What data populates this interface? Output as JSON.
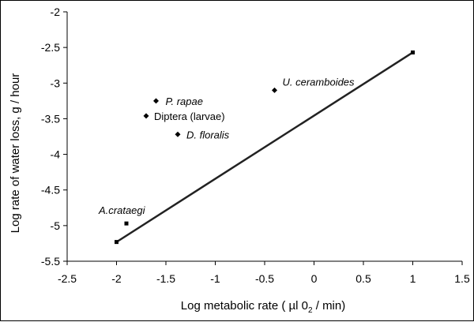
{
  "chart_data": {
    "type": "scatter",
    "title": "",
    "xlabel": "Log metabolic rate ( µl 0",
    "xlabel_subscript": "2",
    "xlabel_suffix": " / min)",
    "ylabel": "Log rate of water loss, g / hour",
    "xlim": [
      -2.5,
      1.5
    ],
    "ylim": [
      -5.5,
      -2
    ],
    "xticks": [
      -2.5,
      -2,
      -1.5,
      -1,
      -0.5,
      0,
      0.5,
      1,
      1.5
    ],
    "yticks": [
      -5.5,
      -5,
      -4.5,
      -4,
      -3.5,
      -3,
      -2.5,
      -2
    ],
    "grid": false,
    "legend": "none",
    "points": [
      {
        "label": "P. rapae",
        "x": -1.6,
        "y": -3.25,
        "italic": true,
        "marker": "diamond"
      },
      {
        "label": "Diptera (larvae)",
        "x": -1.7,
        "y": -3.46,
        "italic": false,
        "marker": "diamond"
      },
      {
        "label": "D. floralis",
        "x": -1.38,
        "y": -3.72,
        "italic": true,
        "marker": "diamond"
      },
      {
        "label": "U. ceramboides",
        "x": -0.4,
        "y": -3.1,
        "italic": true,
        "marker": "diamond"
      },
      {
        "label": "A.crataegi",
        "x": -1.9,
        "y": -4.97,
        "italic": true,
        "marker": "square"
      }
    ],
    "regression_line": {
      "x": [
        -2,
        1
      ],
      "y": [
        -5.23,
        -2.57
      ]
    },
    "line_endpoint_markers": [
      {
        "x": -2,
        "y": -5.23
      },
      {
        "x": 1,
        "y": -2.57
      }
    ],
    "colors": {
      "axis": "#000000",
      "marker": "#000000",
      "line": "#222222",
      "background": "#ffffff"
    }
  }
}
